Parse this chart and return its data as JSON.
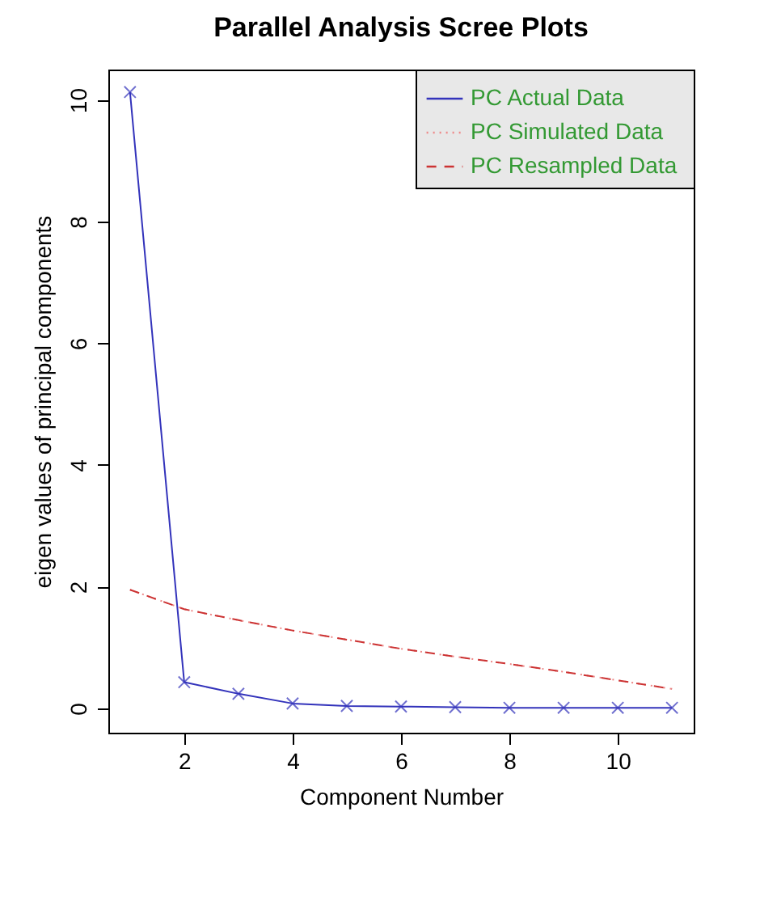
{
  "chart_data": {
    "type": "line",
    "title": "Parallel Analysis Scree Plots",
    "xlabel": "Component Number",
    "ylabel": "eigen values of principal components",
    "x": [
      1,
      2,
      3,
      4,
      5,
      6,
      7,
      8,
      9,
      10,
      11
    ],
    "xlim": [
      0.6,
      11.4
    ],
    "xticks": [
      2,
      4,
      6,
      8,
      10
    ],
    "ylim": [
      -0.4,
      10.5
    ],
    "yticks": [
      0,
      2,
      4,
      6,
      8,
      10
    ],
    "grid": false,
    "legend": "top right",
    "series": [
      {
        "name": "PC  Actual Data",
        "color": "#3333bb",
        "line_style": "solid",
        "marker": "cross",
        "values": [
          10.13,
          0.43,
          0.24,
          0.08,
          0.04,
          0.03,
          0.02,
          0.01,
          0.01,
          0.01,
          0.01
        ]
      },
      {
        "name": "PC  Simulated Data",
        "color": "#ee8888",
        "line_style": "dotted",
        "marker": "none",
        "values": [
          1.95,
          1.63,
          1.45,
          1.28,
          1.13,
          0.98,
          0.85,
          0.73,
          0.6,
          0.46,
          0.32
        ]
      },
      {
        "name": "PC  Resampled Data",
        "color": "#cc3333",
        "line_style": "dashed",
        "marker": "none",
        "values": [
          1.95,
          1.63,
          1.45,
          1.28,
          1.13,
          0.98,
          0.85,
          0.73,
          0.6,
          0.46,
          0.32
        ]
      }
    ]
  }
}
